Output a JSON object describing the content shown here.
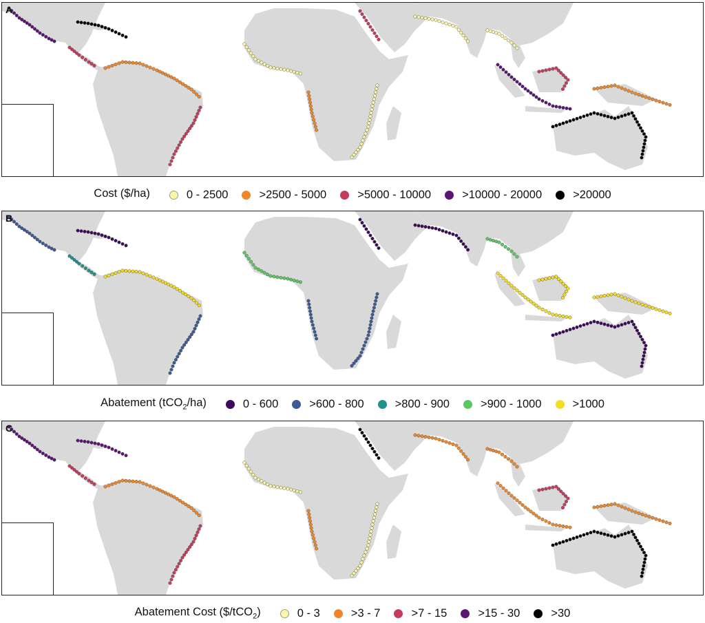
{
  "panels": [
    {
      "label": "A",
      "legend": {
        "title": "Cost ($/ha)",
        "title_sub": "",
        "title_end": "",
        "items": [
          {
            "label": "0 - 2500",
            "color": "#fbf6a6"
          },
          {
            "label": ">2500 - 5000",
            "color": "#ef8727"
          },
          {
            "label": ">5000 - 10000",
            "color": "#c43c5a"
          },
          {
            "label": ">10000 - 20000",
            "color": "#5a1576"
          },
          {
            "label": ">20000",
            "color": "#050505"
          }
        ]
      }
    },
    {
      "label": "B",
      "legend": {
        "title": "Abatement (tCO",
        "title_sub": "2",
        "title_end": "/ha)",
        "items": [
          {
            "label": "0 - 600",
            "color": "#3d0a5c"
          },
          {
            "label": ">600 - 800",
            "color": "#3b5a96"
          },
          {
            "label": ">800 - 900",
            "color": "#23918b"
          },
          {
            "label": ">900 - 1000",
            "color": "#5bc763"
          },
          {
            "label": ">1000",
            "color": "#f5dc1e"
          }
        ]
      }
    },
    {
      "label": "C",
      "legend": {
        "title": "Abatement Cost ($/tCO",
        "title_sub": "2",
        "title_end": ")",
        "items": [
          {
            "label": "0 - 3",
            "color": "#fbf6a6"
          },
          {
            "label": ">3 - 7",
            "color": "#ef8727"
          },
          {
            "label": ">7 - 15",
            "color": "#c43c5a"
          },
          {
            "label": ">15 - 30",
            "color": "#5a1576"
          },
          {
            "label": ">30",
            "color": "#050505"
          }
        ]
      }
    }
  ],
  "land_color": "#d9d9d9"
}
